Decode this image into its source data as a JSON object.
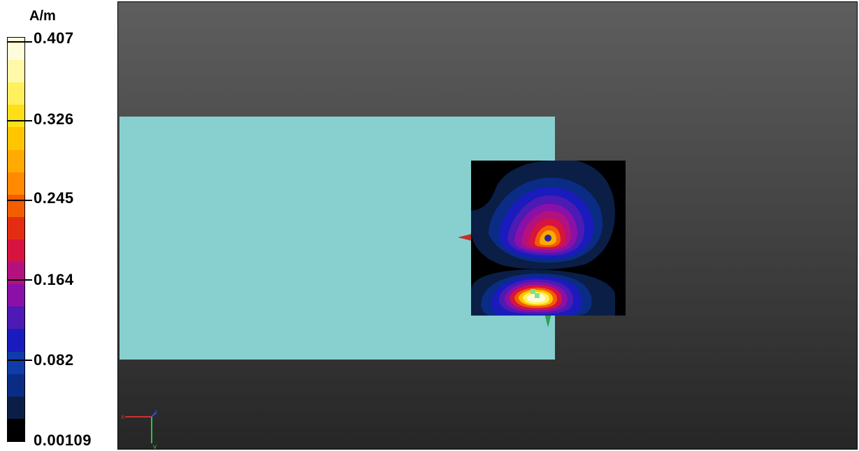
{
  "legend": {
    "unit": "A/m",
    "ticks": [
      "0.407",
      "0.326",
      "0.245",
      "0.164",
      "0.082",
      "0.00109"
    ],
    "colors": [
      "#000000",
      "#0a1e46",
      "#0a2c85",
      "#0f3ca8",
      "#1a1bbd",
      "#4d1ab3",
      "#8a10a8",
      "#b3117e",
      "#d7133f",
      "#e32d12",
      "#f25d00",
      "#ff8a00",
      "#ffaa00",
      "#ffc500",
      "#ffe017",
      "#fff15e",
      "#fff8a8",
      "#fffcd9"
    ]
  },
  "viewport": {
    "background_top": "#5e5e5e",
    "background_bottom": "#262626",
    "plate_color": "#88cfcf",
    "axes": {
      "x": "x",
      "y": "y",
      "z": "z"
    }
  }
}
